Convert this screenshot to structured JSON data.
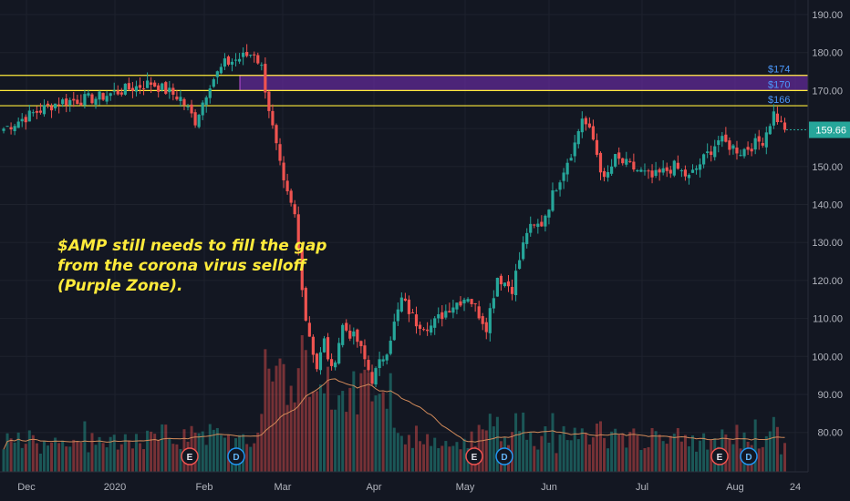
{
  "chart_data": {
    "type": "candlestick",
    "price_axis": {
      "ticks": [
        "190.00",
        "180.00",
        "170.00",
        "160.00",
        "150.00",
        "140.00",
        "130.00",
        "120.00",
        "110.00",
        "100.00",
        "90.00",
        "80.00"
      ],
      "ylim": [
        72,
        194
      ]
    },
    "time_axis": {
      "ticks": [
        "Dec",
        "2020",
        "Feb",
        "Mar",
        "Apr",
        "May",
        "Jun",
        "Jul",
        "Aug",
        "24"
      ]
    },
    "last_price": "159.66",
    "levels": [
      {
        "label": "$174",
        "price": 174
      },
      {
        "label": "$170",
        "price": 170
      },
      {
        "label": "$166",
        "price": 166
      }
    ],
    "gap_zone": {
      "from": 170,
      "to": 174
    },
    "annotation": [
      "$AMP still needs to fill the gap",
      "from the corona virus selloff",
      "(Purple Zone)."
    ],
    "events": [
      {
        "label": "E",
        "kind": "earnings"
      },
      {
        "label": "D",
        "kind": "dividend"
      },
      {
        "label": "E",
        "kind": "earnings"
      },
      {
        "label": "D",
        "kind": "dividend"
      },
      {
        "label": "E",
        "kind": "earnings"
      },
      {
        "label": "D",
        "kind": "dividend"
      }
    ],
    "anchors": [
      {
        "bar": 0,
        "p": 160
      },
      {
        "bar": 8,
        "p": 164
      },
      {
        "bar": 15,
        "p": 167
      },
      {
        "bar": 25,
        "p": 168
      },
      {
        "bar": 32,
        "p": 170
      },
      {
        "bar": 40,
        "p": 172
      },
      {
        "bar": 48,
        "p": 168
      },
      {
        "bar": 52,
        "p": 162
      },
      {
        "bar": 56,
        "p": 172
      },
      {
        "bar": 60,
        "p": 177
      },
      {
        "bar": 68,
        "p": 180
      },
      {
        "bar": 70,
        "p": 176
      },
      {
        "bar": 73,
        "p": 160
      },
      {
        "bar": 76,
        "p": 145
      },
      {
        "bar": 79,
        "p": 137
      },
      {
        "bar": 82,
        "p": 110
      },
      {
        "bar": 85,
        "p": 97
      },
      {
        "bar": 87,
        "p": 104
      },
      {
        "bar": 89,
        "p": 96
      },
      {
        "bar": 92,
        "p": 108
      },
      {
        "bar": 96,
        "p": 104
      },
      {
        "bar": 100,
        "p": 94
      },
      {
        "bar": 104,
        "p": 102
      },
      {
        "bar": 108,
        "p": 115
      },
      {
        "bar": 112,
        "p": 109
      },
      {
        "bar": 116,
        "p": 108
      },
      {
        "bar": 121,
        "p": 113
      },
      {
        "bar": 126,
        "p": 116
      },
      {
        "bar": 131,
        "p": 108
      },
      {
        "bar": 134,
        "p": 121
      },
      {
        "bar": 138,
        "p": 118
      },
      {
        "bar": 142,
        "p": 133
      },
      {
        "bar": 146,
        "p": 135
      },
      {
        "bar": 150,
        "p": 145
      },
      {
        "bar": 155,
        "p": 156
      },
      {
        "bar": 157,
        "p": 163
      },
      {
        "bar": 160,
        "p": 157
      },
      {
        "bar": 163,
        "p": 146
      },
      {
        "bar": 166,
        "p": 152
      },
      {
        "bar": 170,
        "p": 150
      },
      {
        "bar": 176,
        "p": 147
      },
      {
        "bar": 182,
        "p": 150
      },
      {
        "bar": 186,
        "p": 147
      },
      {
        "bar": 190,
        "p": 152
      },
      {
        "bar": 194,
        "p": 157
      },
      {
        "bar": 200,
        "p": 154
      },
      {
        "bar": 206,
        "p": 157
      },
      {
        "bar": 209,
        "p": 164
      },
      {
        "bar": 212,
        "p": 159.66
      }
    ]
  }
}
